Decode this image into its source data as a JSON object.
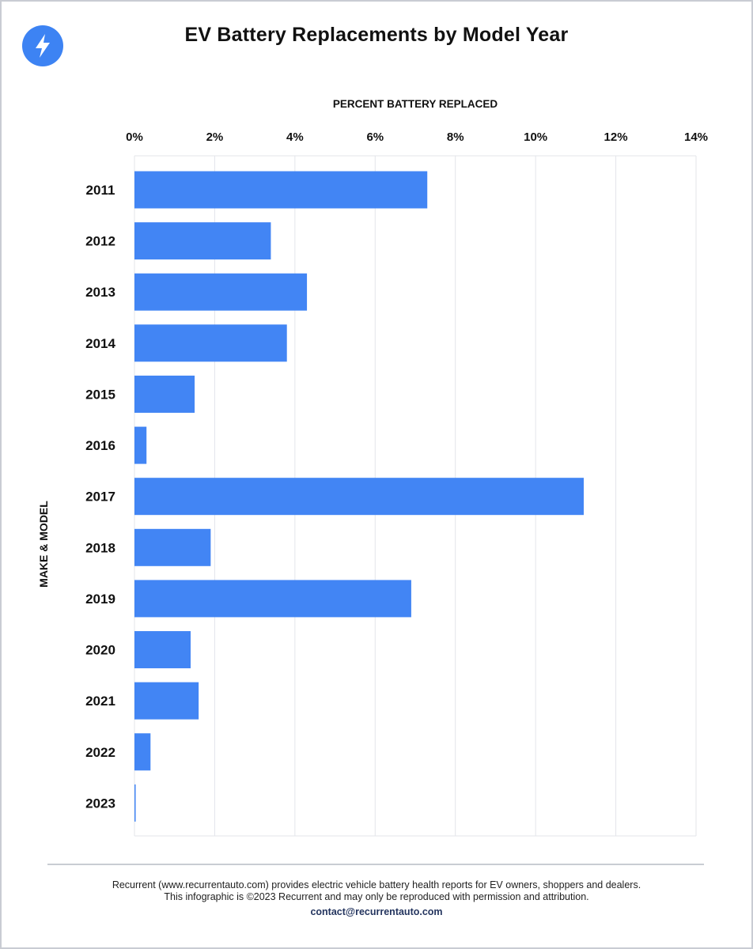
{
  "colors": {
    "bar": "#4285f4",
    "logo": "#3d83f3",
    "grid": "#e3e5ea",
    "frame": "#c9ccd3",
    "contact": "#24355f"
  },
  "header": {
    "logo_icon": "lightning-bolt-icon"
  },
  "chart_data": {
    "type": "bar",
    "orientation": "horizontal",
    "title": "EV Battery Replacements by Model Year",
    "xlabel": "PERCENT BATTERY REPLACED",
    "ylabel": "MAKE & MODEL",
    "x_axis_position": "top",
    "xlim": [
      0,
      14
    ],
    "x_ticks": [
      "0%",
      "2%",
      "4%",
      "6%",
      "8%",
      "10%",
      "12%",
      "14%"
    ],
    "grid": true,
    "categories": [
      "2011",
      "2012",
      "2013",
      "2014",
      "2015",
      "2016",
      "2017",
      "2018",
      "2019",
      "2020",
      "2021",
      "2022",
      "2023"
    ],
    "values": [
      7.3,
      3.4,
      4.3,
      3.8,
      1.5,
      0.3,
      11.2,
      1.9,
      6.9,
      1.4,
      1.6,
      0.4,
      0.03
    ]
  },
  "footer": {
    "line1": "Recurrent (www.recurrentauto.com) provides electric vehicle battery health reports for EV owners, shoppers and dealers.",
    "line2": "This infographic is ©2023 Recurrent and may only be reproduced with permission and attribution.",
    "contact": "contact@recurrentauto.com"
  }
}
